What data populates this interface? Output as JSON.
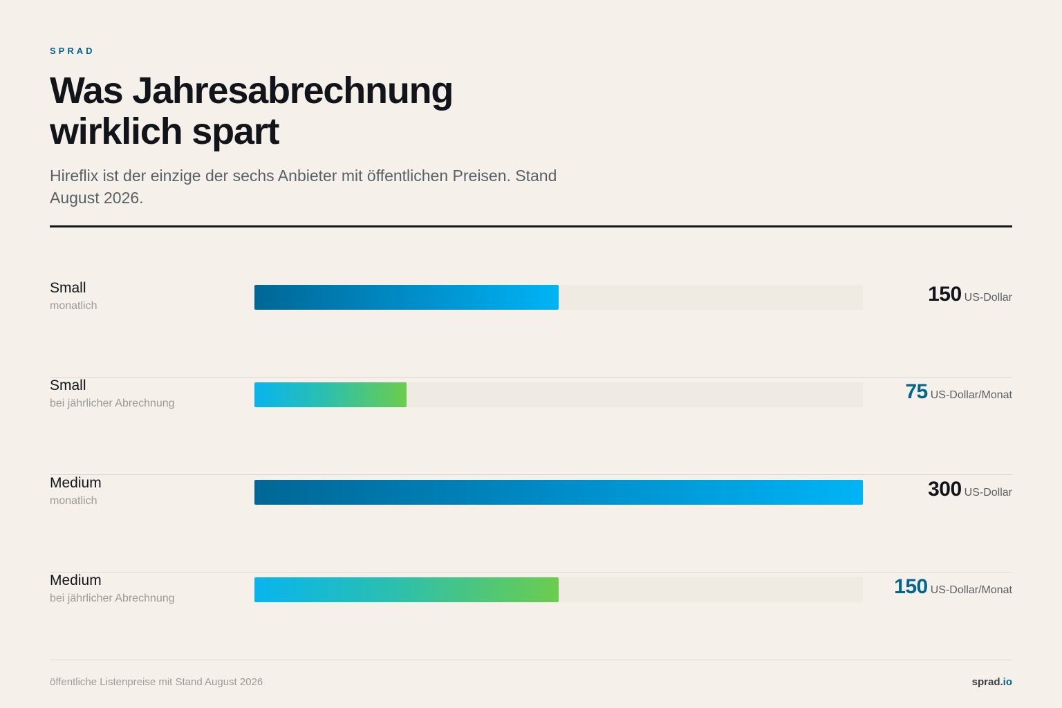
{
  "brand": "SPRAD",
  "title": "Was Jahresabrechnung wirklich spart",
  "subtitle": "Hireflix ist der einzige der sechs Anbieter mit öffentlichen Preisen. Stand August 2026.",
  "footer": {
    "note": "öffentliche Listenpreise mit Stand August 2026",
    "site_name": "sprad",
    "site_tld": ".io"
  },
  "colors": {
    "accent": "#00658f",
    "monthly_gradient": [
      "#006795",
      "#00b4f5"
    ],
    "annual_gradient": [
      "#08b4ee",
      "#6ccc4e"
    ],
    "track": "#efebe2",
    "background": "#f5f1ea"
  },
  "chart_data": {
    "type": "bar",
    "orientation": "horizontal",
    "xlim": [
      0,
      300
    ],
    "grid": false,
    "categories": [
      "Small – monatlich",
      "Small – bei jährlicher Abrechnung",
      "Medium – monatlich",
      "Medium – bei jährlicher Abrechnung"
    ],
    "values": [
      150,
      75,
      300,
      150
    ],
    "rows": [
      {
        "name": "Small",
        "sub": "monatlich",
        "value": 150,
        "value_text": "150",
        "unit": "US-Dollar",
        "kind": "monthly"
      },
      {
        "name": "Small",
        "sub": "bei jährlicher Abrechnung",
        "value": 75,
        "value_text": "75",
        "unit": "US-Dollar/Monat",
        "kind": "annual"
      },
      {
        "name": "Medium",
        "sub": "monatlich",
        "value": 300,
        "value_text": "300",
        "unit": "US-Dollar",
        "kind": "monthly"
      },
      {
        "name": "Medium",
        "sub": "bei jährlicher Abrechnung",
        "value": 150,
        "value_text": "150",
        "unit": "US-Dollar/Monat",
        "kind": "annual"
      }
    ]
  }
}
